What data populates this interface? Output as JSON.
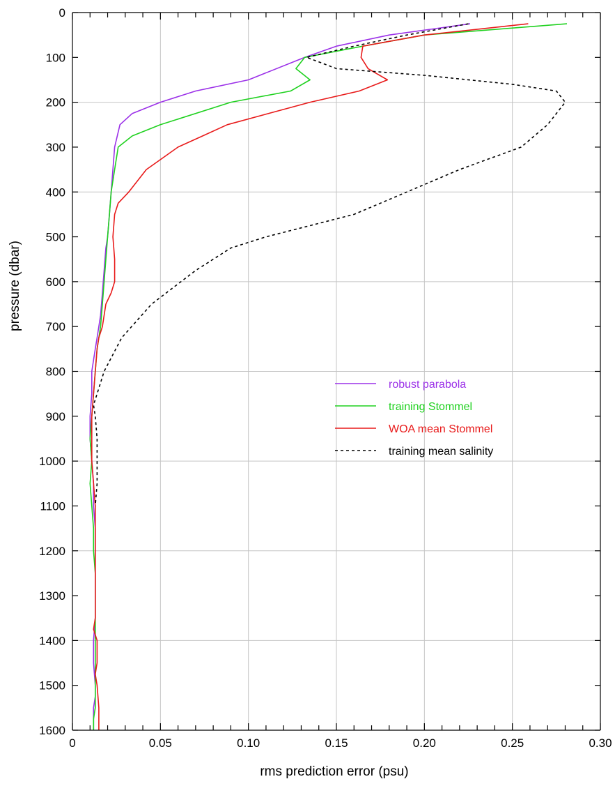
{
  "chart_data": {
    "type": "line",
    "title": "",
    "xlabel": "rms prediction error (psu)",
    "ylabel": "pressure (dbar)",
    "xlim": [
      0,
      0.3
    ],
    "ylim": [
      1600,
      0
    ],
    "y_inverted": true,
    "grid": true,
    "legend_position": "center-right",
    "x_ticks": [
      "0",
      "0.05",
      "0.10",
      "0.15",
      "0.20",
      "0.25",
      "0.30"
    ],
    "x_tick_values": [
      0,
      0.05,
      0.1,
      0.15,
      0.2,
      0.25,
      0.3
    ],
    "y_ticks": [
      "0",
      "100",
      "200",
      "300",
      "400",
      "500",
      "600",
      "700",
      "800",
      "900",
      "1000",
      "1100",
      "1200",
      "1300",
      "1400",
      "1500",
      "1600"
    ],
    "y_tick_values": [
      0,
      100,
      200,
      300,
      400,
      500,
      600,
      700,
      800,
      900,
      1000,
      1100,
      1200,
      1300,
      1400,
      1500,
      1600
    ],
    "series": [
      {
        "name": "robust parabola",
        "color": "#9b30e8",
        "dash": "solid",
        "x": [
          0.226,
          0.18,
          0.15,
          0.132,
          0.1,
          0.07,
          0.05,
          0.034,
          0.027,
          0.024,
          0.023,
          0.022,
          0.021,
          0.02,
          0.019,
          0.018,
          0.017,
          0.016,
          0.015,
          0.014,
          0.013,
          0.012,
          0.011,
          0.011,
          0.01,
          0.01,
          0.011,
          0.012,
          0.012,
          0.013,
          0.013,
          0.013,
          0.013,
          0.013,
          0.012,
          0.012,
          0.013,
          0.013,
          0.012,
          0.012
        ],
        "y": [
          25,
          50,
          75,
          100,
          150,
          175,
          200,
          225,
          250,
          300,
          350,
          400,
          450,
          500,
          525,
          575,
          625,
          675,
          700,
          725,
          750,
          775,
          800,
          850,
          900,
          950,
          1000,
          1050,
          1100,
          1150,
          1200,
          1250,
          1300,
          1350,
          1400,
          1450,
          1500,
          1525,
          1550,
          1600
        ]
      },
      {
        "name": "training Stommel",
        "color": "#1fd11f",
        "dash": "solid",
        "x": [
          0.281,
          0.2,
          0.165,
          0.132,
          0.127,
          0.135,
          0.124,
          0.09,
          0.05,
          0.034,
          0.026,
          0.024,
          0.022,
          0.021,
          0.02,
          0.019,
          0.018,
          0.017,
          0.016,
          0.015,
          0.014,
          0.013,
          0.012,
          0.011,
          0.01,
          0.011,
          0.01,
          0.011,
          0.012,
          0.012,
          0.013,
          0.013,
          0.013,
          0.013,
          0.013,
          0.013,
          0.013,
          0.013,
          0.012,
          0.012
        ],
        "y": [
          25,
          50,
          75,
          100,
          125,
          150,
          175,
          200,
          250,
          275,
          300,
          350,
          400,
          450,
          500,
          550,
          600,
          650,
          700,
          725,
          750,
          800,
          850,
          900,
          950,
          1000,
          1050,
          1100,
          1150,
          1200,
          1250,
          1300,
          1350,
          1400,
          1450,
          1500,
          1525,
          1550,
          1575,
          1600
        ]
      },
      {
        "name": "WOA mean Stommel",
        "color": "#e81a1a",
        "dash": "solid",
        "x": [
          0.259,
          0.2,
          0.165,
          0.164,
          0.168,
          0.179,
          0.163,
          0.135,
          0.088,
          0.074,
          0.06,
          0.051,
          0.042,
          0.032,
          0.026,
          0.024,
          0.023,
          0.024,
          0.024,
          0.022,
          0.019,
          0.017,
          0.015,
          0.014,
          0.013,
          0.012,
          0.011,
          0.011,
          0.011,
          0.012,
          0.013,
          0.013,
          0.013,
          0.013,
          0.012,
          0.014,
          0.014,
          0.013,
          0.014,
          0.015,
          0.015
        ],
        "y": [
          25,
          50,
          75,
          100,
          125,
          150,
          175,
          200,
          250,
          275,
          300,
          325,
          350,
          400,
          425,
          450,
          500,
          550,
          600,
          625,
          650,
          700,
          725,
          750,
          800,
          850,
          900,
          950,
          1000,
          1050,
          1100,
          1200,
          1300,
          1350,
          1375,
          1400,
          1450,
          1475,
          1500,
          1550,
          1600
        ]
      },
      {
        "name": "training mean salinity",
        "color": "#000000",
        "dash": "dashed",
        "x": [
          0.225,
          0.19,
          0.16,
          0.133,
          0.14,
          0.15,
          0.2,
          0.25,
          0.275,
          0.28,
          0.27,
          0.255,
          0.22,
          0.19,
          0.16,
          0.135,
          0.11,
          0.09,
          0.07,
          0.045,
          0.028,
          0.018,
          0.014,
          0.012,
          0.013,
          0.014,
          0.014,
          0.013
        ],
        "y": [
          25,
          50,
          75,
          100,
          110,
          125,
          140,
          160,
          175,
          200,
          250,
          300,
          350,
          400,
          450,
          475,
          500,
          525,
          575,
          650,
          725,
          800,
          850,
          875,
          900,
          950,
          1050,
          1100
        ]
      }
    ]
  }
}
